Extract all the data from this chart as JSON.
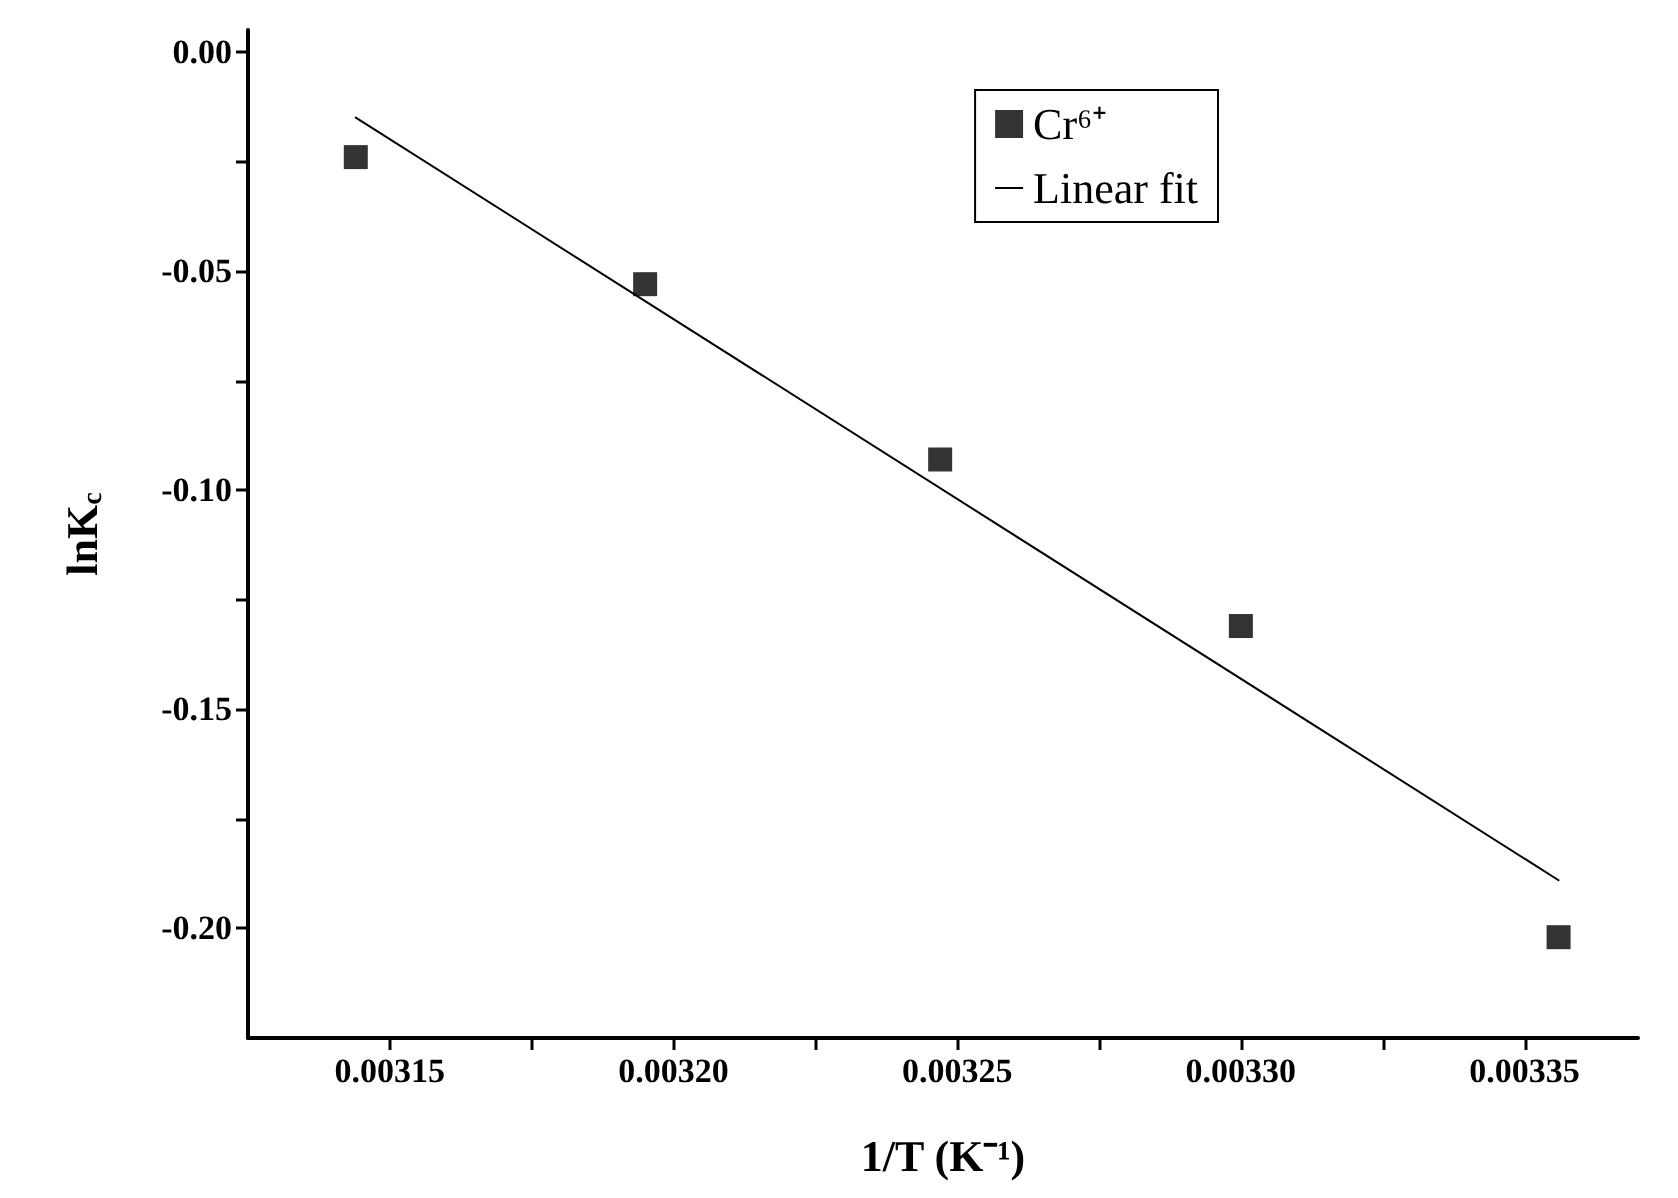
{
  "chart_data": {
    "type": "scatter",
    "xlabel": "1/T (K⁻¹)",
    "ylabel": "lnK$_{c}$",
    "xlim": [
      0.003125,
      0.00337
    ],
    "ylim": [
      -0.225,
      0.005
    ],
    "xticks": [
      0.00315,
      {
        "value": 0.003175,
        "label": null
      },
      {
        "value": 0.0032,
        "label": "0.00320"
      },
      {
        "value": 0.003225,
        "label": null
      },
      0.00325,
      {
        "value": 0.003275,
        "label": null
      },
      {
        "value": 0.0033,
        "label": "0.00330"
      },
      {
        "value": 0.003325,
        "label": null
      },
      0.00335
    ],
    "yticks": [
      {
        "value": 0,
        "label": "0.00"
      },
      {
        "value": -0.025,
        "label": null
      },
      {
        "value": -0.05,
        "label": "-0.05"
      },
      {
        "value": -0.075,
        "label": null
      },
      {
        "value": -0.1,
        "label": "-0.10"
      },
      {
        "value": -0.125,
        "label": null
      },
      {
        "value": -0.15,
        "label": "-0.15"
      },
      {
        "value": -0.175,
        "label": null
      },
      {
        "value": -0.2,
        "label": "-0.20"
      }
    ],
    "grid": false,
    "legend": "top right",
    "series": [
      {
        "name": "Cr⁶⁺",
        "marker": "square",
        "color": "#000000",
        "x": [
          0.003144,
          0.003195,
          0.003247,
          0.0033,
          0.003356
        ],
        "values": [
          -0.024,
          -0.053,
          -0.093,
          -0.131,
          -0.202
        ]
      },
      {
        "name": "Linear fit",
        "type": "line",
        "marker": "none",
        "line_style": "solid",
        "color": "#000000",
        "x": [
          0.003144,
          0.003356
        ],
        "values": [
          -0.015,
          -0.189
        ]
      }
    ]
  }
}
